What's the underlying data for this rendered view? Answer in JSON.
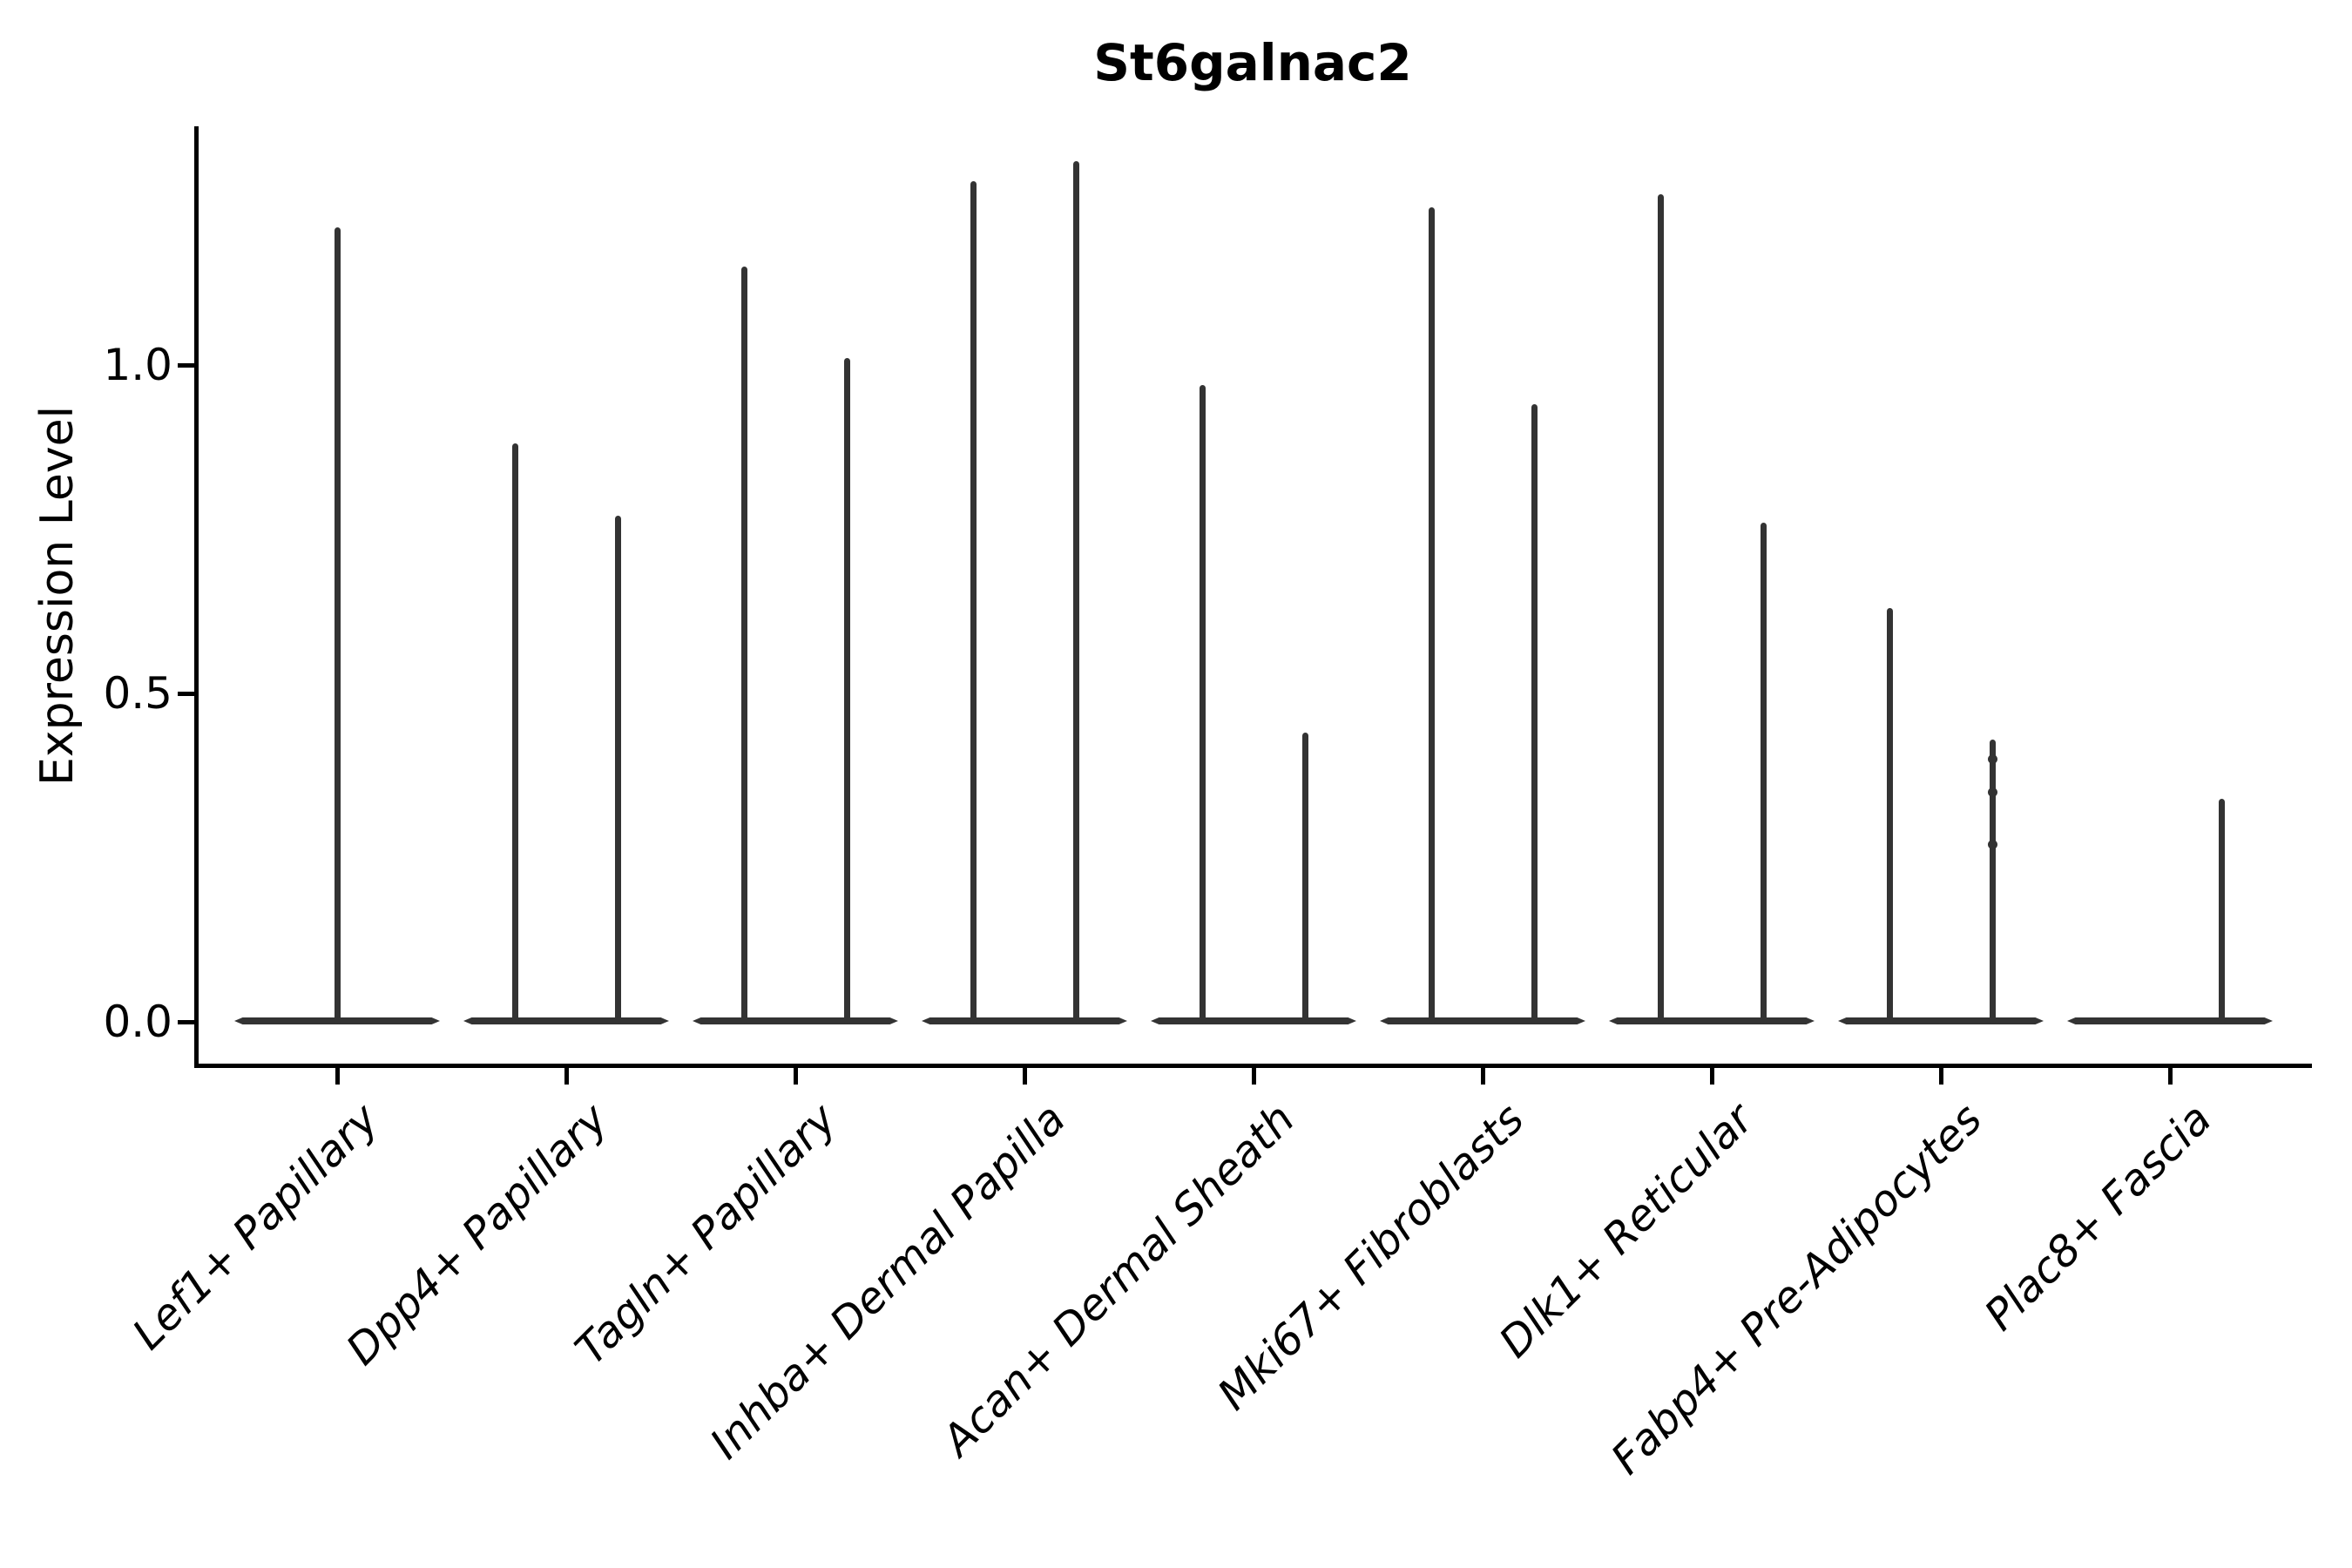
{
  "chart_data": {
    "type": "violin",
    "title": "St6galnac2",
    "ylabel": "Expression Level",
    "xlabel": "",
    "yticks": [
      "0.0",
      "0.5",
      "1.0"
    ],
    "ytick_values": [
      0.0,
      0.5,
      1.0
    ],
    "ylim": [
      -0.07,
      1.37
    ],
    "grid": false,
    "legend": "none",
    "violin_color": "#333333",
    "axis_color": "#000000",
    "categories": [
      {
        "label": "Lef1+ Papillary",
        "violins": [
          {
            "group": "single",
            "max_expression": 1.21
          }
        ]
      },
      {
        "label": "Dpp4+ Papillary",
        "violins": [
          {
            "group": "left",
            "max_expression": 0.88
          },
          {
            "group": "right",
            "max_expression": 0.77
          }
        ]
      },
      {
        "label": "Tagln+ Papillary",
        "violins": [
          {
            "group": "left",
            "max_expression": 1.15
          },
          {
            "group": "right",
            "max_expression": 1.01
          }
        ]
      },
      {
        "label": "Inhba+ Dermal Papilla",
        "violins": [
          {
            "group": "left",
            "max_expression": 1.28
          },
          {
            "group": "right",
            "max_expression": 1.31
          }
        ]
      },
      {
        "label": "Acan+ Dermal Sheath",
        "violins": [
          {
            "group": "left",
            "max_expression": 0.97
          },
          {
            "group": "right",
            "max_expression": 0.44
          }
        ]
      },
      {
        "label": "Mki67+ Fibroblasts",
        "violins": [
          {
            "group": "left",
            "max_expression": 1.24
          },
          {
            "group": "right",
            "max_expression": 0.94
          }
        ]
      },
      {
        "label": "Dlk1+ Reticular",
        "violins": [
          {
            "group": "left",
            "max_expression": 1.26
          },
          {
            "group": "right",
            "max_expression": 0.76
          }
        ]
      },
      {
        "label": "Fabp4+ Pre-Adipocytes",
        "violins": [
          {
            "group": "left",
            "max_expression": 0.63
          },
          {
            "group": "right",
            "max_expression": 0.43,
            "point_bumps": [
              0.4,
              0.35,
              0.27
            ]
          }
        ]
      },
      {
        "label": "Plac8+ Fascia",
        "violins": [
          {
            "group": "left",
            "max_expression": 0.0
          },
          {
            "group": "right",
            "max_expression": 0.34
          }
        ]
      }
    ]
  }
}
